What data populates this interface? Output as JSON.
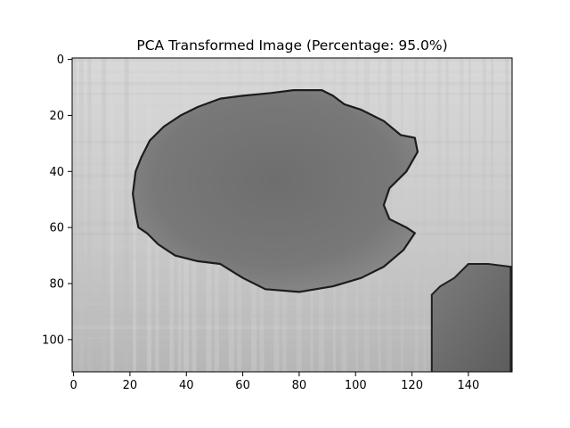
{
  "chart_data": {
    "type": "heatmap",
    "title": "PCA Transformed Image (Percentage: 95.0%)",
    "xlabel": "",
    "ylabel": "",
    "colormap": "gray",
    "image_width": 156,
    "image_height": 112,
    "xlim": [
      -0.5,
      155.5
    ],
    "ylim": [
      111.5,
      -0.5
    ],
    "x_ticks": [
      0,
      20,
      40,
      60,
      80,
      100,
      120,
      140
    ],
    "y_ticks": [
      0,
      20,
      40,
      60,
      80,
      100
    ],
    "x_tick_labels": [
      "0",
      "20",
      "40",
      "60",
      "80",
      "100",
      "120",
      "140"
    ],
    "y_tick_labels": [
      "0",
      "20",
      "40",
      "60",
      "80",
      "100"
    ],
    "grid": false,
    "legend": "none",
    "object_outline": [
      [
        52,
        14
      ],
      [
        60,
        13
      ],
      [
        70,
        12
      ],
      [
        78,
        11
      ],
      [
        88,
        11
      ],
      [
        92,
        13
      ],
      [
        96,
        16
      ],
      [
        102,
        18
      ],
      [
        110,
        22
      ],
      [
        116,
        27
      ],
      [
        121,
        28
      ],
      [
        122,
        33
      ],
      [
        118,
        40
      ],
      [
        112,
        46
      ],
      [
        110,
        52
      ],
      [
        112,
        57
      ],
      [
        118,
        60
      ],
      [
        121,
        62
      ],
      [
        117,
        68
      ],
      [
        110,
        74
      ],
      [
        102,
        78
      ],
      [
        92,
        81
      ],
      [
        80,
        83
      ],
      [
        68,
        82
      ],
      [
        60,
        78
      ],
      [
        52,
        73
      ],
      [
        44,
        72
      ],
      [
        36,
        70
      ],
      [
        30,
        66
      ],
      [
        26,
        62
      ],
      [
        23,
        60
      ],
      [
        22,
        55
      ],
      [
        21,
        48
      ],
      [
        22,
        40
      ],
      [
        24,
        35
      ],
      [
        27,
        29
      ],
      [
        32,
        24
      ],
      [
        38,
        20
      ],
      [
        44,
        17
      ]
    ],
    "corner_region_outline": [
      [
        127,
        84
      ],
      [
        130,
        81
      ],
      [
        135,
        78
      ],
      [
        140,
        73
      ],
      [
        147,
        73
      ],
      [
        155,
        74
      ],
      [
        155,
        112
      ],
      [
        127,
        112
      ]
    ]
  }
}
